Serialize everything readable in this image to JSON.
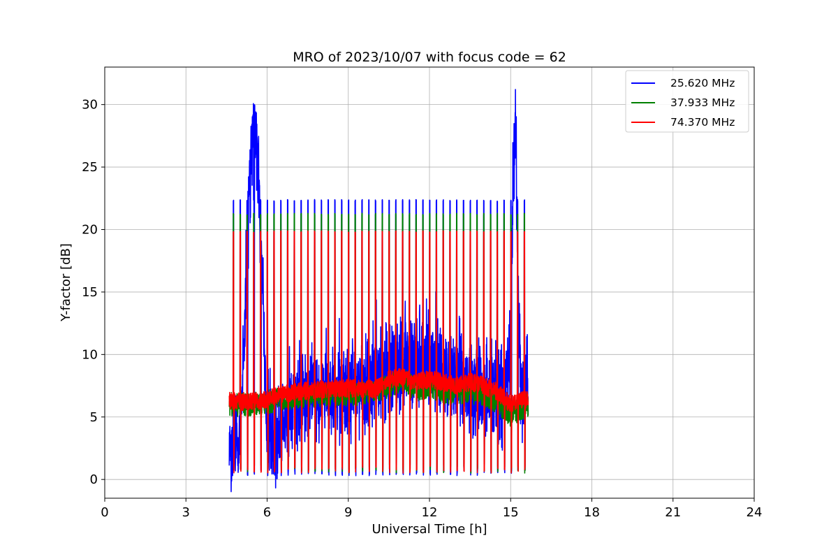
{
  "chart_data": {
    "type": "line",
    "title": "MRO of 2023/10/07 with focus code = 62",
    "xlabel": "Universal Time [h]",
    "ylabel": "Y-factor [dB]",
    "xlim": [
      0,
      24
    ],
    "ylim": [
      -1.5,
      33
    ],
    "xticks": [
      0,
      3,
      6,
      9,
      12,
      15,
      18,
      21,
      24
    ],
    "yticks": [
      0,
      5,
      10,
      15,
      20,
      25,
      30
    ],
    "grid": true,
    "legend_position": "top-right",
    "data_start": 4.6,
    "data_end": 15.65,
    "calibration_spikes_x": [
      4.75,
      5.0,
      5.25,
      5.5,
      5.75,
      6.0,
      6.25,
      6.5,
      6.75,
      7.0,
      7.25,
      7.5,
      7.75,
      8.0,
      8.25,
      8.5,
      8.75,
      9.0,
      9.25,
      9.5,
      9.75,
      10.0,
      10.25,
      10.5,
      10.75,
      11.0,
      11.25,
      11.5,
      11.75,
      12.0,
      12.25,
      12.5,
      12.75,
      13.0,
      13.25,
      13.5,
      13.75,
      14.0,
      14.25,
      14.5,
      14.75,
      15.0,
      15.25,
      15.5
    ],
    "series": [
      {
        "name": "25.620 MHz",
        "color": "#0000ff",
        "spike_top": 22.4,
        "spike_bottom": 0.3,
        "baseline": {
          "x": [
            4.6,
            4.8,
            5.0,
            5.2,
            5.35,
            5.5,
            5.6,
            5.7,
            5.8,
            5.9,
            6.0,
            6.3,
            6.6,
            7.0,
            7.5,
            8.0,
            8.5,
            9.0,
            9.5,
            10.0,
            10.5,
            11.0,
            11.5,
            12.0,
            12.5,
            13.0,
            13.5,
            14.0,
            14.5,
            14.8,
            15.0,
            15.1,
            15.2,
            15.3,
            15.4,
            15.65
          ],
          "y": [
            2.6,
            3.0,
            3.4,
            14.0,
            24.0,
            28.0,
            27.0,
            23.0,
            18.0,
            10.0,
            3.0,
            3.5,
            4.5,
            6.0,
            6.5,
            7.0,
            7.0,
            7.0,
            7.5,
            8.0,
            8.5,
            9.0,
            9.0,
            9.5,
            8.0,
            8.0,
            7.5,
            7.0,
            6.5,
            7.0,
            10.0,
            25.0,
            26.0,
            12.0,
            7.0,
            8.0
          ],
          "noise": 3.0
        }
      },
      {
        "name": "37.933 MHz",
        "color": "#008000",
        "spike_top": 21.3,
        "spike_bottom": 0.5,
        "baseline": {
          "x": [
            4.6,
            5.5,
            6.0,
            6.5,
            7.0,
            8.0,
            9.0,
            9.5,
            10.0,
            10.5,
            11.0,
            11.5,
            12.0,
            12.5,
            13.0,
            13.5,
            14.0,
            14.5,
            15.0,
            15.65
          ],
          "y": [
            6.0,
            6.0,
            6.2,
            6.4,
            6.6,
            6.8,
            6.8,
            6.9,
            7.0,
            7.5,
            8.0,
            7.2,
            7.5,
            7.0,
            7.0,
            7.0,
            6.8,
            6.2,
            5.2,
            6.0
          ],
          "noise": 1.2
        }
      },
      {
        "name": "74.370 MHz",
        "color": "#ff0000",
        "spike_top": 19.9,
        "spike_bottom": 0.5,
        "baseline": {
          "x": [
            4.6,
            5.5,
            6.0,
            6.5,
            7.0,
            8.0,
            9.0,
            9.5,
            10.0,
            10.5,
            11.0,
            11.5,
            12.0,
            12.5,
            13.0,
            13.5,
            14.0,
            14.5,
            15.0,
            15.65
          ],
          "y": [
            6.3,
            6.2,
            6.4,
            6.8,
            7.0,
            7.2,
            7.3,
            7.3,
            7.2,
            8.0,
            8.2,
            7.8,
            8.0,
            7.8,
            7.5,
            7.8,
            7.5,
            7.0,
            6.0,
            6.5
          ],
          "noise": 0.9
        }
      }
    ]
  }
}
